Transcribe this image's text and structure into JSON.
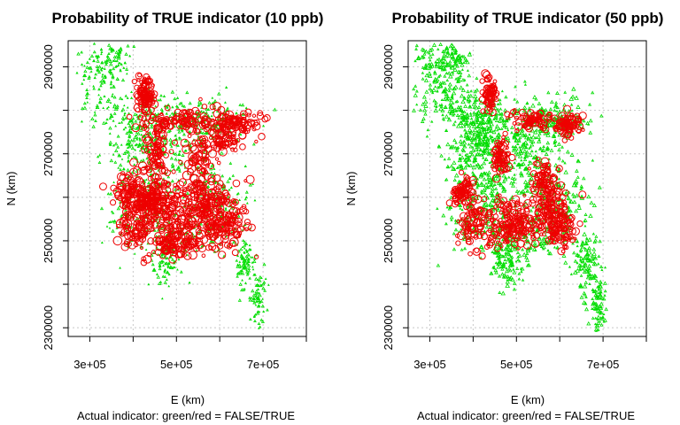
{
  "colors": {
    "false_color": "#00dd00",
    "true_color": "#ee0000",
    "grid": "#c8c8c8"
  },
  "chart_data": [
    {
      "type": "scatter",
      "title": "Probability of TRUE indicator (10 ppb)",
      "xlabel": "E (km)",
      "ylabel": "N (km)",
      "subtitle": "Actual indicator: green/red = FALSE/TRUE",
      "xlim": [
        250000,
        800000
      ],
      "ylim": [
        2280000,
        2960000
      ],
      "xticks": [
        300000,
        400000,
        500000,
        600000,
        700000,
        800000
      ],
      "xtick_labels": [
        "3e+05",
        "",
        "5e+05",
        "",
        "7e+05",
        ""
      ],
      "yticks": [
        2300000,
        2400000,
        2500000,
        2600000,
        2700000,
        2800000,
        2900000
      ],
      "ytick_labels": [
        "2300000",
        "",
        "2500000",
        "",
        "2700000",
        "",
        "2900000"
      ],
      "grid": true,
      "series": [
        {
          "name": "FALSE",
          "color": "#00dd00"
        },
        {
          "name": "TRUE",
          "color": "#ee0000"
        }
      ]
    },
    {
      "type": "scatter",
      "title": "Probability of TRUE indicator (50 ppb)",
      "xlabel": "E (km)",
      "ylabel": "N (km)",
      "subtitle": "Actual indicator: green/red = FALSE/TRUE",
      "xlim": [
        250000,
        800000
      ],
      "ylim": [
        2280000,
        2960000
      ],
      "xticks": [
        300000,
        400000,
        500000,
        600000,
        700000,
        800000
      ],
      "xtick_labels": [
        "3e+05",
        "",
        "5e+05",
        "",
        "7e+05",
        ""
      ],
      "yticks": [
        2300000,
        2400000,
        2500000,
        2600000,
        2700000,
        2800000,
        2900000
      ],
      "ytick_labels": [
        "2300000",
        "",
        "2500000",
        "",
        "2700000",
        "",
        "2900000"
      ],
      "grid": true,
      "series": [
        {
          "name": "FALSE",
          "color": "#00dd00"
        },
        {
          "name": "TRUE",
          "color": "#ee0000"
        }
      ]
    }
  ]
}
